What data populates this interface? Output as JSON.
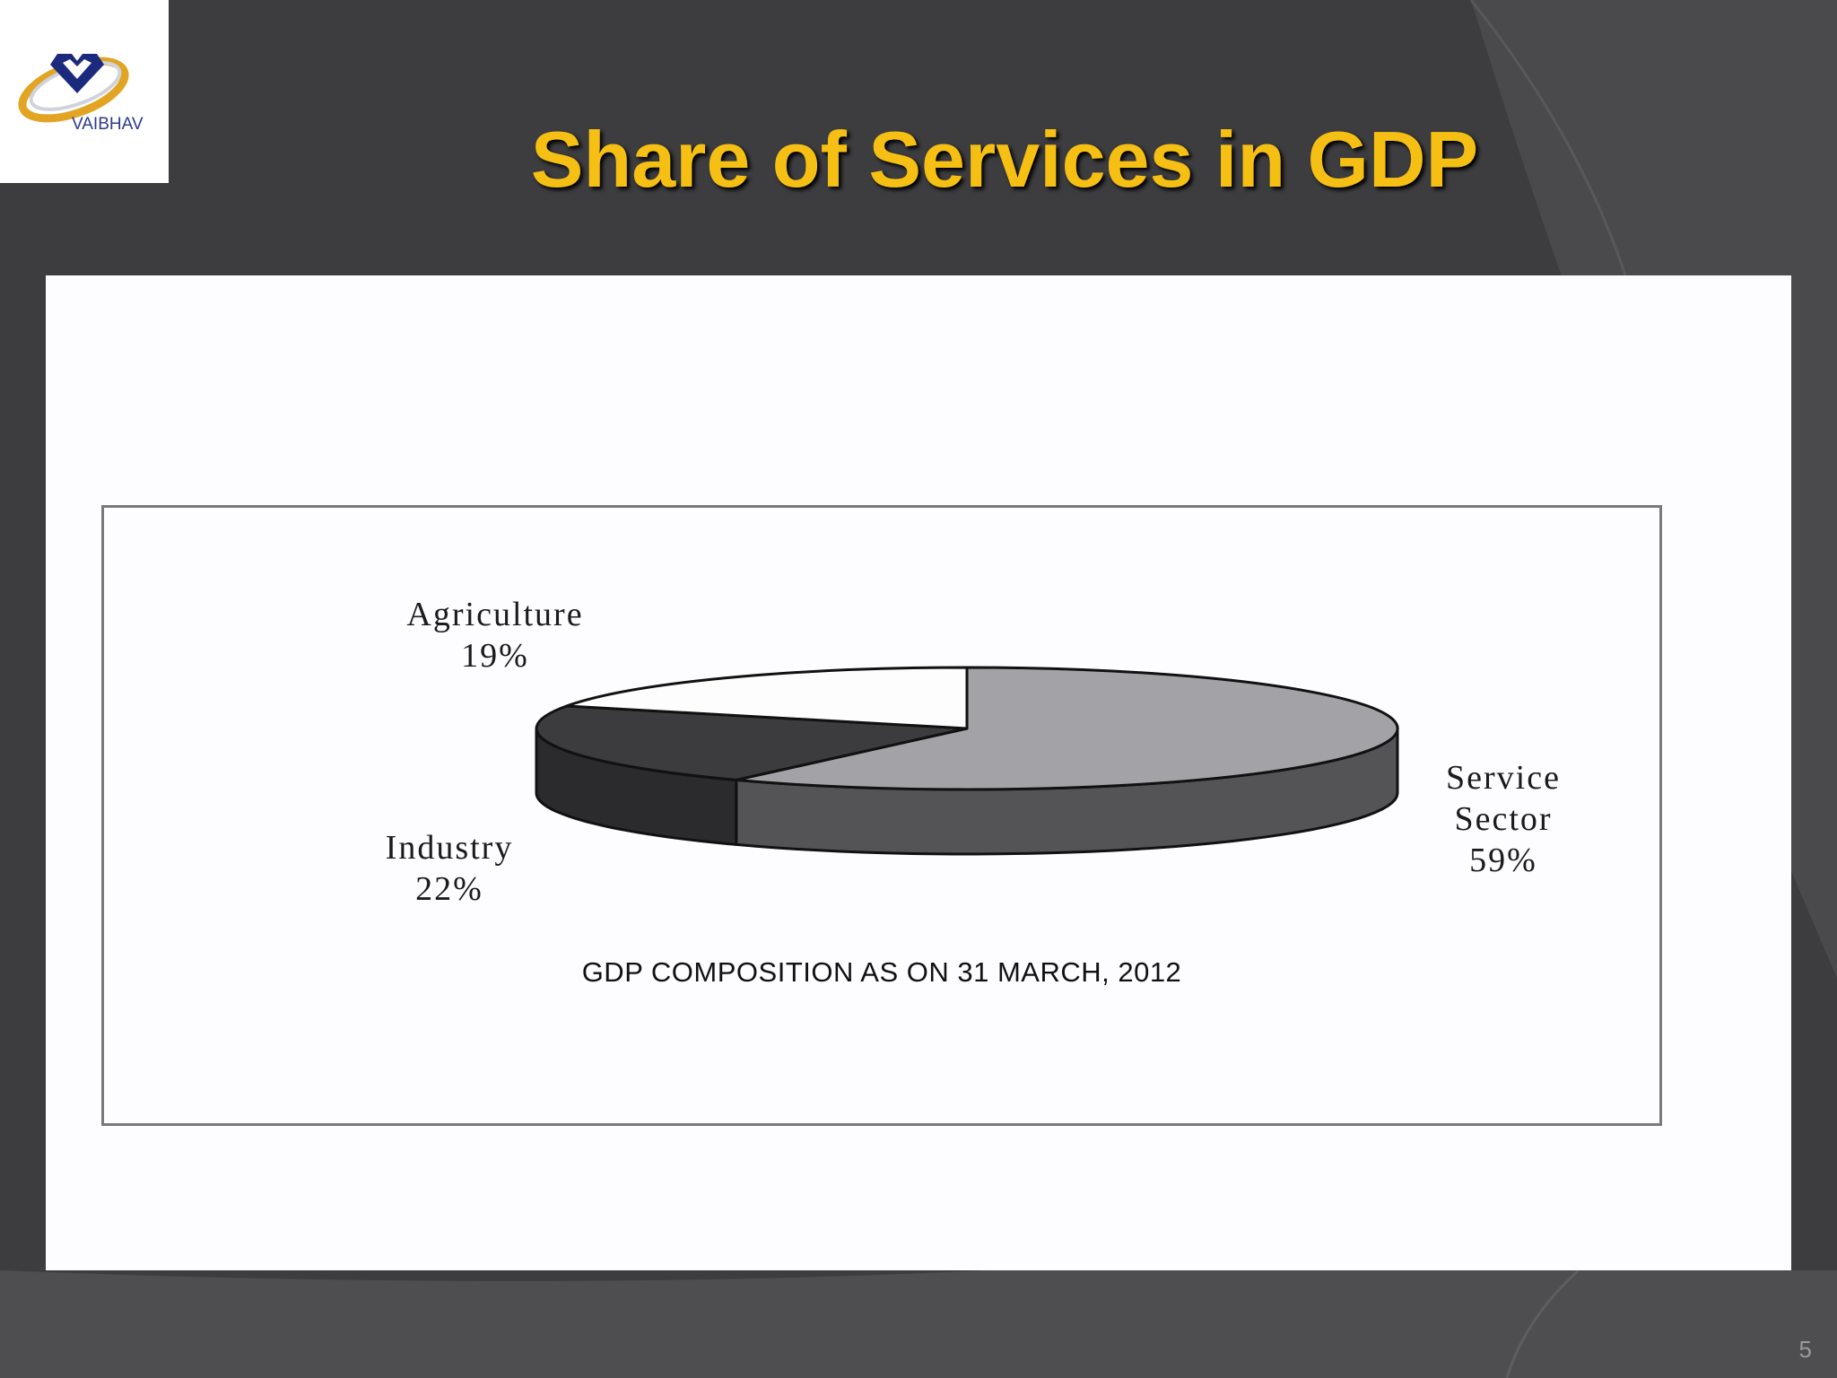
{
  "logo": {
    "text": "VAIBHAV"
  },
  "slide": {
    "title": "Share of Services in GDP",
    "page_number": "5"
  },
  "colors": {
    "background": "#3d3c3f",
    "title": "#f5c013",
    "service_top": "#a3a2a6",
    "service_side": "#545356",
    "industry_top": "#3c3b3e",
    "industry_side": "#2b2a2d",
    "agriculture_top": "#fdfdfd"
  },
  "chart_data": {
    "type": "pie",
    "title": "GDP COMPOSITION AS ON 31 MARCH, 2012",
    "labels": [
      "Service Sector",
      "Industry",
      "Agriculture"
    ],
    "values": [
      59,
      22,
      19
    ],
    "value_labels": [
      "59%",
      "22%",
      "19%"
    ],
    "style": "3d"
  },
  "labels": {
    "agriculture": {
      "name": "Agriculture",
      "value": "19%"
    },
    "industry": {
      "name": "Industry",
      "value": "22%"
    },
    "service": {
      "line1": "Service",
      "line2": "Sector",
      "value": "59%"
    }
  }
}
